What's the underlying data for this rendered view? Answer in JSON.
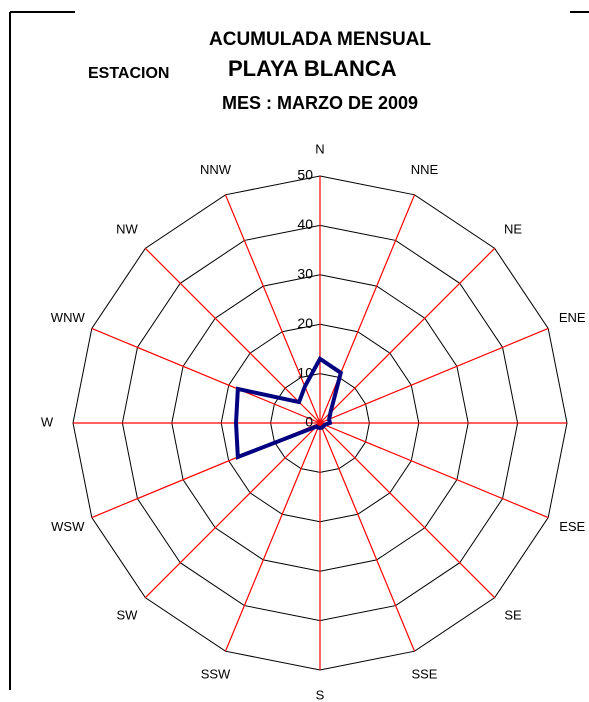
{
  "chart_data": {
    "type": "radar",
    "title": "ACUMULADA MENSUAL",
    "station_label": "ESTACION",
    "station": "PLAYA BLANCA",
    "subtitle": "MES : MARZO DE 2009",
    "categories": [
      "N",
      "NNE",
      "NE",
      "ENE",
      "E",
      "ESE",
      "SE",
      "SSE",
      "S",
      "SSW",
      "SW",
      "WSW",
      "W",
      "WNW",
      "NW",
      "NNW"
    ],
    "series": [
      {
        "name": "Acumulada",
        "color": "#000080",
        "values": [
          13,
          11,
          3,
          2,
          2,
          1,
          1,
          1,
          1,
          1,
          1,
          18,
          17,
          18,
          6,
          8
        ]
      }
    ],
    "ylim": [
      0,
      50
    ],
    "yticks": [
      0,
      10,
      20,
      30,
      40,
      50
    ],
    "grid_color": "#000000",
    "spoke_color": "#ff0000"
  }
}
